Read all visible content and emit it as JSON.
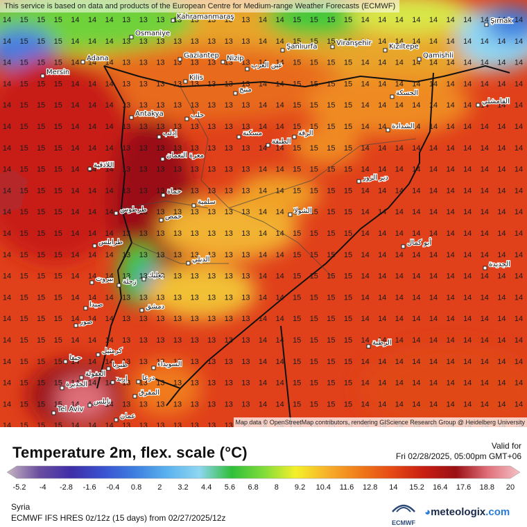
{
  "header": {
    "disclaimer": "This service is based on data and products of the European Centre for Medium-range Weather Forecasts (ECMWF)"
  },
  "map": {
    "attribution": "Map data © OpenStreetMap contributors, rendering GIScience Research Group @ Heidelberg University",
    "cities": [
      "Kahramanmaraş",
      "Şırnak",
      "Osmaniye",
      "Gaziantep",
      "Adana",
      "Nizip",
      "Şanlıurfa",
      "Viranşehir",
      "Kızıltepe",
      "Qamishli",
      "Mersin",
      "Kilis",
      "عين العرب",
      "منبج",
      "الحسكة",
      "القامشلي",
      "حلب",
      "Antakya",
      "إدلب",
      "مسكنة",
      "الرقة",
      "الطبقة",
      "الشدادة",
      "معرة النعمان",
      "اللاذقية",
      "دير الزور",
      "حماة",
      "سلمية",
      "طرطوس",
      "حمص",
      "الشولا",
      "أبو كمال",
      "طرابلس",
      "الدبلي",
      "بعلبك",
      "زحلة",
      "بيروت",
      "دمشق",
      "صيدا",
      "صور",
      "حيفا",
      "كرمئيل",
      "السويداء",
      "طبريا",
      "العفولة",
      "إربد",
      "درعا",
      "الرطبة",
      "الجديدة",
      "الخديرة",
      "نابلس",
      "المفرق",
      "Tel Aviv",
      "عمان"
    ],
    "grid_columns": [
      14,
      15,
      15,
      15,
      14,
      14,
      14,
      13,
      13,
      13,
      13,
      13,
      13,
      13,
      13,
      14,
      14,
      15,
      15,
      15,
      15,
      14,
      14,
      14,
      14,
      14,
      14,
      14,
      14,
      14,
      14
    ]
  },
  "legend": {
    "title": "Temperature 2m, flex. scale (°C)",
    "valid_label": "Valid for",
    "valid_time": "Fri 02/28/2025, 05:00pm GMT+06",
    "ticks": [
      "-5.2",
      "-4",
      "-2.8",
      "-1.6",
      "-0.4",
      "0.8",
      "2",
      "3.2",
      "4.4",
      "5.6",
      "6.8",
      "8",
      "9.2",
      "10.4",
      "11.6",
      "12.8",
      "14",
      "15.2",
      "16.4",
      "17.6",
      "18.8",
      "20"
    ],
    "colors": [
      "#c7b5c2",
      "#6b4ea0",
      "#3f2ea8",
      "#3a52d0",
      "#3e7fe0",
      "#5ab2ee",
      "#8fd6f2",
      "#2fbf3a",
      "#7fdc3a",
      "#f4f02a",
      "#f7b02a",
      "#f07a1a",
      "#e54a14",
      "#c81e12",
      "#9a1014",
      "#e0707a",
      "#f4c2c6"
    ]
  },
  "footer": {
    "region": "Syria",
    "model": "ECMWF IFS HRES 0z/12z (15 days) from  02/27/2025/12z",
    "ecmwf_label": "ECMWF",
    "brand": "meteologix",
    "brand_tld": ".com"
  }
}
